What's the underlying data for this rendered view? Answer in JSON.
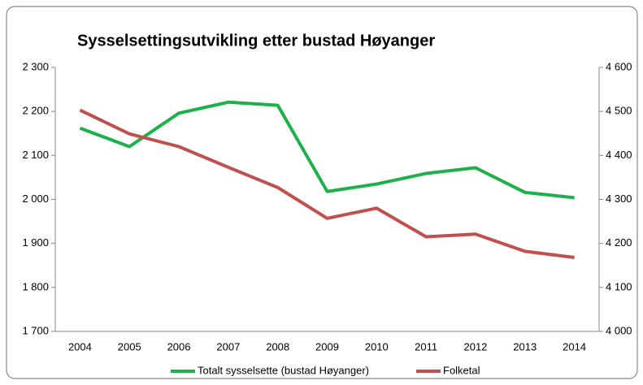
{
  "chart_data": {
    "type": "line",
    "title": "Sysselsettingsutvikling etter bustad Høyanger",
    "categories": [
      "2004",
      "2005",
      "2006",
      "2007",
      "2008",
      "2009",
      "2010",
      "2011",
      "2012",
      "2013",
      "2014"
    ],
    "series": [
      {
        "name": "Totalt sysselsette (bustad Høyanger)",
        "color": "#1eb14b",
        "values": [
          2162,
          2120,
          2196,
          2221,
          2214,
          2018,
          2035,
          2059,
          2072,
          2016,
          2004
        ]
      },
      {
        "name": "Folketal",
        "color": "#c0504d",
        "axis": "y2",
        "values": [
          4503,
          4449,
          4420,
          4373,
          4327,
          4257,
          4280,
          4215,
          4221,
          4182,
          4168
        ]
      }
    ],
    "ylim": [
      1700,
      2300
    ],
    "yticks": [
      {
        "value": 1700,
        "label": "1 700"
      },
      {
        "value": 1800,
        "label": "1 800"
      },
      {
        "value": 1900,
        "label": "1 900"
      },
      {
        "value": 2000,
        "label": "2 000"
      },
      {
        "value": 2100,
        "label": "2 100"
      },
      {
        "value": 2200,
        "label": "2 200"
      },
      {
        "value": 2300,
        "label": "2 300"
      }
    ],
    "y2lim": [
      4000,
      4600
    ],
    "y2ticks": [
      {
        "value": 4000,
        "label": "4 000"
      },
      {
        "value": 4100,
        "label": "4 100"
      },
      {
        "value": 4200,
        "label": "4 200"
      },
      {
        "value": 4300,
        "label": "4 300"
      },
      {
        "value": 4400,
        "label": "4 400"
      },
      {
        "value": 4500,
        "label": "4 500"
      },
      {
        "value": 4600,
        "label": "4 600"
      }
    ],
    "grid": false,
    "legend": "bottom"
  }
}
